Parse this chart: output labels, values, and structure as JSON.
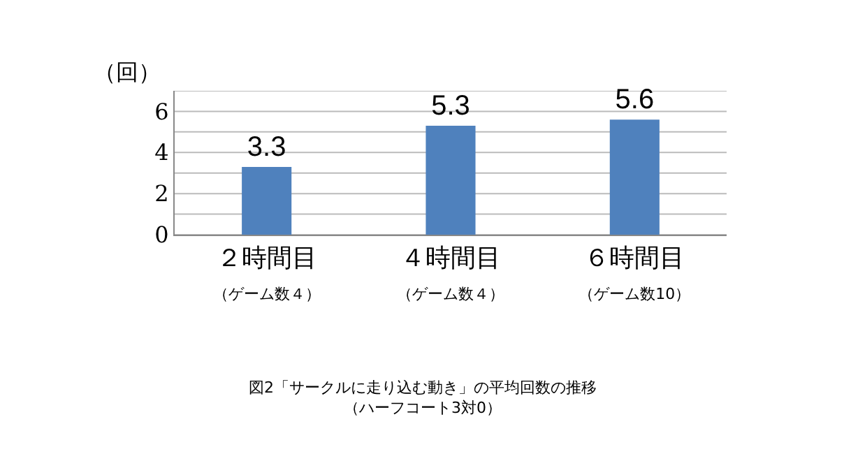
{
  "chart_data": {
    "type": "bar",
    "categories": [
      "２時間目（ゲーム数４）",
      "４時間目（ゲーム数４）",
      "６時間目（ゲーム数10）"
    ],
    "values": [
      3.3,
      5.3,
      5.6
    ],
    "color": "#4f81bd",
    "ylabel": "（回）",
    "ylim": [
      0,
      7
    ],
    "yticks": [
      0,
      {
        "value": 1,
        "label": null
      },
      2,
      {
        "value": 3,
        "label": null
      },
      4,
      {
        "value": 5,
        "label": null
      },
      6,
      {
        "value": 7,
        "label": null
      }
    ],
    "grid": true,
    "data_labels": true,
    "annotations": [
      "図2「サークルに走り込む動き」の平均回数の推移（ハーフコート3対0）"
    ]
  }
}
